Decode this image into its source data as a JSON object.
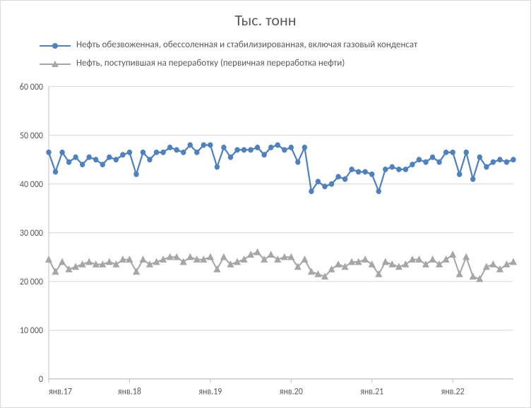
{
  "title": "Тыс. тонн",
  "legend": {
    "s1": "Нефть обезвоженная, обессоленная  и стабилизированная, включая газовый конденсат",
    "s2": "Нефть, поступившая на переработку (первичная переработка нефти)"
  },
  "chart": {
    "type": "line",
    "background_color": "#ffffff",
    "grid_color": "#d9d9d9",
    "axis_text_color": "#595959",
    "title_fontsize": 22,
    "legend_fontsize": 13,
    "axis_fontsize": 12,
    "ylim": [
      0,
      60000
    ],
    "ytick_step": 10000,
    "ytick_labels": [
      "0",
      "10 000",
      "20 000",
      "30 000",
      "40 000",
      "50 000",
      "60 000"
    ],
    "xtick_indices": [
      0,
      12,
      24,
      36,
      48,
      60
    ],
    "xtick_labels": [
      "янв.17",
      "янв.18",
      "янв.19",
      "янв.20",
      "янв.21",
      "янв.22"
    ],
    "n_points": 70,
    "series": {
      "s1": {
        "color": "#4f81bd",
        "line_width": 2.2,
        "marker": "circle",
        "marker_size": 3.2,
        "values": [
          46500,
          42500,
          46500,
          44500,
          45500,
          44000,
          45500,
          45000,
          44000,
          45500,
          45000,
          46000,
          46500,
          42000,
          46500,
          45000,
          46500,
          46500,
          47500,
          47000,
          46500,
          48000,
          46500,
          48000,
          48000,
          43500,
          47500,
          45500,
          47000,
          47000,
          47000,
          47500,
          46000,
          47500,
          48000,
          47000,
          47500,
          44500,
          47500,
          38500,
          40500,
          39500,
          40000,
          41500,
          41000,
          43000,
          42500,
          42500,
          42000,
          38500,
          43000,
          43500,
          43000,
          43000,
          44000,
          45000,
          44500,
          45500,
          44500,
          46500,
          46500,
          42000,
          46500,
          41000,
          45500,
          43500,
          44500,
          45000,
          44500,
          45000
        ]
      },
      "s2": {
        "color": "#a6a6a6",
        "line_width": 2.0,
        "marker": "triangle",
        "marker_size": 4.2,
        "values": [
          24500,
          22000,
          24000,
          22500,
          23000,
          23500,
          24000,
          23500,
          23500,
          24000,
          23500,
          24500,
          24500,
          22000,
          24500,
          23500,
          24000,
          24500,
          25000,
          25000,
          24000,
          25000,
          24500,
          24500,
          25000,
          22500,
          25000,
          23500,
          24000,
          24500,
          25500,
          26000,
          24500,
          25500,
          24500,
          25000,
          25000,
          23000,
          24500,
          22000,
          21500,
          21000,
          22500,
          23500,
          23000,
          24000,
          24000,
          24500,
          23500,
          21500,
          24000,
          23500,
          23000,
          23500,
          24500,
          24500,
          23500,
          24500,
          23500,
          24500,
          25500,
          21500,
          25000,
          21000,
          20500,
          23000,
          23500,
          22500,
          23500,
          24000
        ]
      }
    }
  }
}
